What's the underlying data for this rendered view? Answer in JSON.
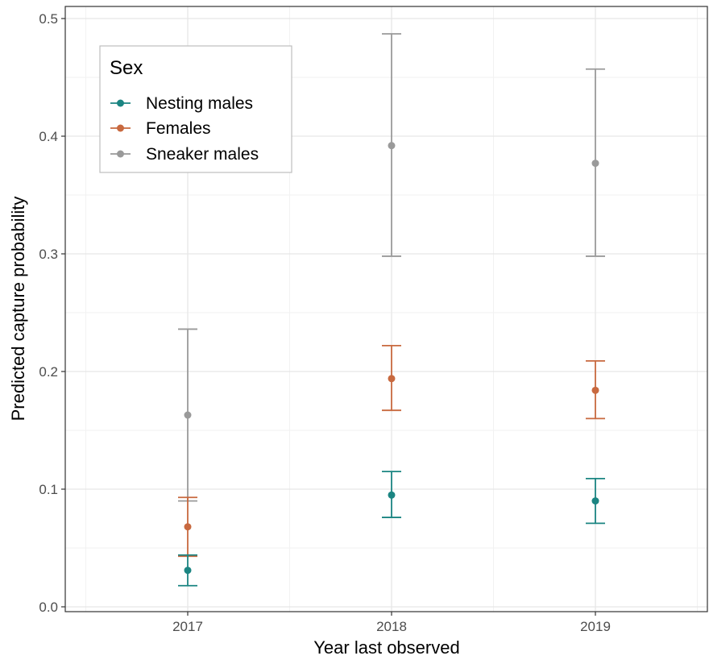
{
  "chart_data": {
    "type": "scatter",
    "title": "",
    "xlabel": "Year last observed",
    "ylabel": "Predicted capture probability",
    "categories": [
      "2017",
      "2018",
      "2019"
    ],
    "ylim": [
      0,
      0.5
    ],
    "yticks": [
      "0.0",
      "0.1",
      "0.2",
      "0.3",
      "0.4",
      "0.5"
    ],
    "grid": true,
    "legend": {
      "title": "Sex",
      "placement": "top-left"
    },
    "series": [
      {
        "name": "Nesting males",
        "color": "#1b8582",
        "values": [
          0.031,
          0.095,
          0.09
        ],
        "lower": [
          0.018,
          0.076,
          0.071
        ],
        "upper": [
          0.044,
          0.115,
          0.109
        ]
      },
      {
        "name": "Females",
        "color": "#c8693f",
        "values": [
          0.068,
          0.194,
          0.184
        ],
        "lower": [
          0.043,
          0.167,
          0.16
        ],
        "upper": [
          0.093,
          0.222,
          0.209
        ]
      },
      {
        "name": "Sneaker males",
        "color": "#9a9a9a",
        "values": [
          0.163,
          0.392,
          0.377
        ],
        "lower": [
          0.09,
          0.298,
          0.298
        ],
        "upper": [
          0.236,
          0.487,
          0.457
        ]
      }
    ]
  }
}
